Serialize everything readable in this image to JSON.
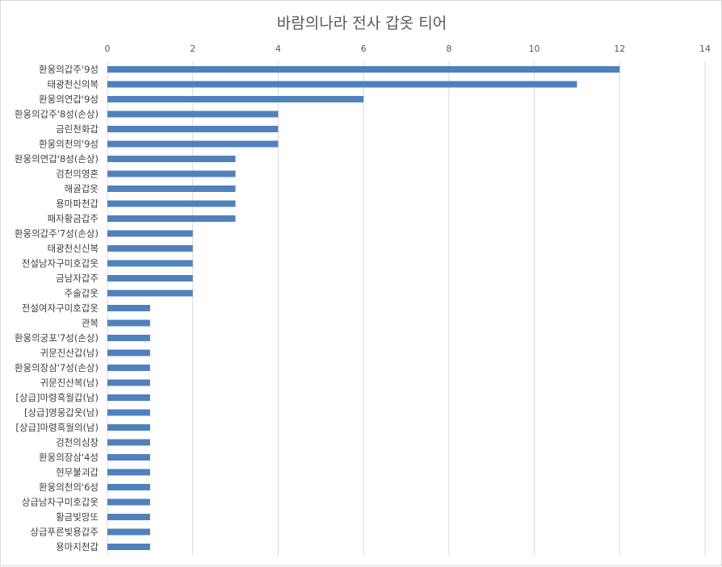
{
  "chart_data": {
    "type": "bar",
    "orientation": "horizontal",
    "title": "바람의나라 전사 갑옷 티어",
    "xlabel": "",
    "ylabel": "",
    "xlim": [
      0,
      14
    ],
    "x_ticks": [
      "0",
      "2",
      "4",
      "6",
      "8",
      "10",
      "12",
      "14"
    ],
    "x_axis_position": "top",
    "grid": true,
    "bar_color": "#4f81bd",
    "categories": [
      "환웅의갑주'9성",
      "태광천신의복",
      "환웅의연갑'9성",
      "환웅의갑주'8성(손상)",
      "금린천화갑",
      "환웅의천의'9성",
      "환웅의연갑'8성(손상)",
      "검천의영혼",
      "해골갑옷",
      "용마파천갑",
      "패자황금갑주",
      "환웅의갑주'7성(손상)",
      "태광천신신복",
      "전설남자구미호갑옷",
      "금남자갑주",
      "주술갑옷",
      "전설여자구미호갑옷",
      "관복",
      "환웅의궁포'7성(손상)",
      "귀문진산갑(남)",
      "환웅의장삼'7성(손상)",
      "귀문진산복(남)",
      "[상급]마령흑월갑(남)",
      "[상급]영웅갑옷(남)",
      "[상급]마령흑월의(남)",
      "검천의심장",
      "환웅의장삼'4성",
      "현무불괴갑",
      "환웅의천의'6성",
      "상급남자구미호갑옷",
      "황금빛망또",
      "상급푸른빛용갑주",
      "용마지천갑"
    ],
    "values": [
      12,
      11,
      6,
      4,
      4,
      4,
      3,
      3,
      3,
      3,
      3,
      2,
      2,
      2,
      2,
      2,
      1,
      1,
      1,
      1,
      1,
      1,
      1,
      1,
      1,
      1,
      1,
      1,
      1,
      1,
      1,
      1,
      1
    ]
  }
}
